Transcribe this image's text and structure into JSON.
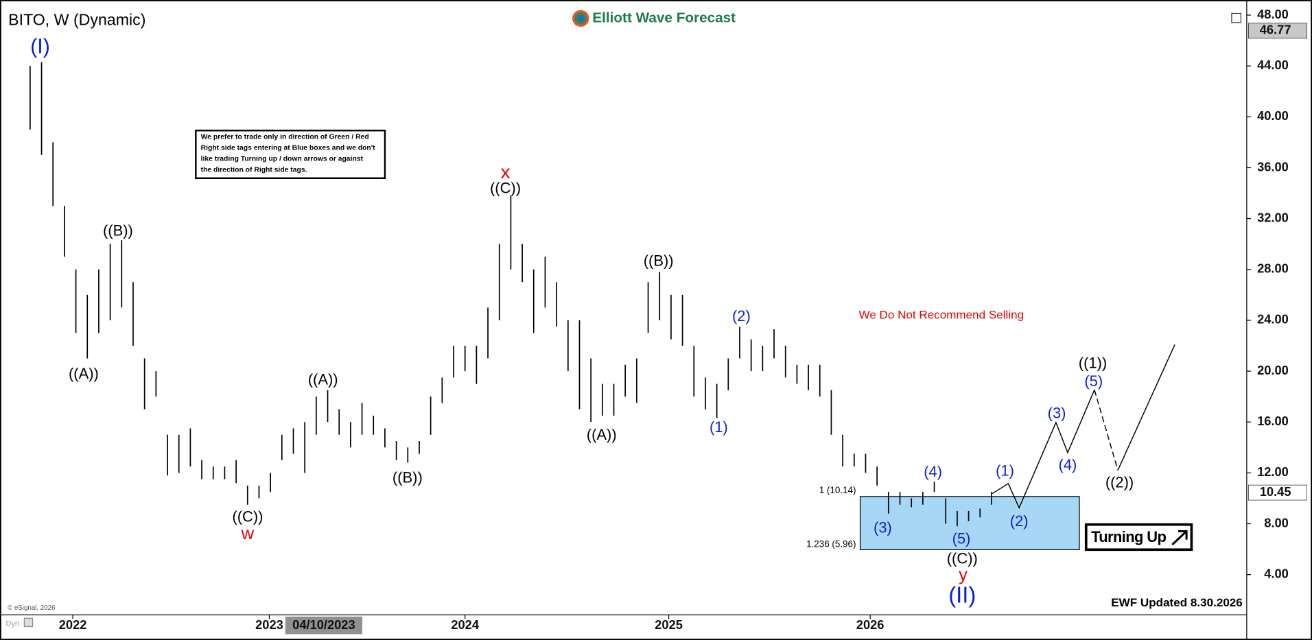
{
  "chart_data": {
    "type": "ohlc",
    "title": "BITO, W (Dynamic)",
    "brand": "Elliott Wave Forecast",
    "categories": [
      null,
      null,
      null,
      null,
      null,
      null,
      null,
      null,
      null,
      null,
      null,
      null,
      null,
      null,
      null,
      null,
      null,
      null,
      null,
      null,
      null,
      null,
      null,
      null,
      null,
      null,
      null,
      null,
      null,
      null,
      null,
      null,
      null,
      null,
      null,
      null,
      null,
      null,
      null,
      null,
      null,
      null,
      null,
      null,
      null,
      null,
      null,
      null,
      null,
      null,
      null,
      null,
      null,
      null,
      null,
      null,
      null,
      null,
      null,
      null,
      null,
      null,
      null,
      null,
      null,
      null,
      null,
      null,
      null,
      null,
      null,
      null,
      null,
      null,
      null,
      null,
      null,
      null,
      null,
      null,
      null,
      null,
      null,
      null,
      null
    ],
    "high": [
      44,
      44.3,
      38,
      33,
      28,
      26,
      28,
      30,
      30.3,
      27,
      21,
      20,
      15,
      15,
      15.5,
      13,
      12.5,
      12.5,
      13,
      11,
      11,
      12,
      15,
      15.5,
      16,
      18,
      18.5,
      17,
      16,
      17.5,
      16.5,
      15.5,
      14.5,
      14,
      14.5,
      18,
      19.5,
      22,
      22,
      22,
      25,
      30,
      33.8,
      30,
      28,
      29,
      27,
      24,
      24,
      21,
      19,
      19,
      20.5,
      21,
      27,
      27.8,
      26,
      26,
      22,
      19.5,
      19,
      21,
      23.5,
      22.5,
      22,
      23.3,
      22,
      20.5,
      20.5,
      20.5,
      18.5,
      15,
      13.5,
      13.5,
      12.5,
      10.5,
      10.5,
      10,
      10.5,
      11.3,
      10,
      9,
      9,
      9.2,
      10.5
    ],
    "low": [
      39,
      37,
      33,
      29,
      23,
      21,
      23,
      24,
      25,
      22,
      17,
      18,
      11.8,
      12,
      12.5,
      11.5,
      11.5,
      11.5,
      11.2,
      9.5,
      10,
      10.5,
      13,
      13.5,
      12,
      15,
      16,
      15,
      14,
      15,
      15,
      14,
      13,
      12.8,
      13.5,
      15,
      17.5,
      19.5,
      20,
      19,
      21,
      24,
      28,
      27,
      23,
      25,
      23.5,
      20,
      17,
      16,
      16.5,
      16.5,
      18,
      17.5,
      23,
      24,
      22.5,
      22,
      18,
      17,
      16.3,
      18.5,
      21,
      20,
      20,
      21,
      19.5,
      19,
      18.5,
      18,
      15,
      12.5,
      12.5,
      12,
      11,
      8.8,
      9.5,
      9.3,
      9.5,
      10.5,
      8,
      7.8,
      8.2,
      8.5,
      9.5
    ],
    "color": "#000000",
    "xlim": [
      -2.63,
      106.3
    ],
    "xticks": [
      {
        "value": 3.73,
        "label": "2022"
      },
      {
        "value": 20.9,
        "label": "2023"
      },
      {
        "value": 38,
        "label": "2024"
      },
      {
        "value": 55.8,
        "label": "2025"
      },
      {
        "value": 73.4,
        "label": "2026"
      }
    ],
    "crosshair_date": "04/10/2023",
    "ylim": [
      0.83,
      48.53
    ],
    "yticks": [
      {
        "value": 4,
        "label": "4.00"
      },
      {
        "value": 8,
        "label": "8.00"
      },
      {
        "value": 12,
        "label": "12.00"
      },
      {
        "value": 16,
        "label": "16.00"
      },
      {
        "value": 20,
        "label": "20.00"
      },
      {
        "value": 24,
        "label": "24.00"
      },
      {
        "value": 28,
        "label": "28.00"
      },
      {
        "value": 32,
        "label": "32.00"
      },
      {
        "value": 36,
        "label": "36.00"
      },
      {
        "value": 40,
        "label": "40.00"
      },
      {
        "value": 44,
        "label": "44.00"
      },
      {
        "value": 48,
        "label": "48.00"
      }
    ],
    "price_tags": [
      46.77,
      10.45
    ],
    "zone": {
      "top": 10.14,
      "bottom": 5.96,
      "top_label": "1 (10.14)",
      "bottom_label": "1.236 (5.96)",
      "color": "#a6d8f5"
    },
    "annotations": [
      "(I)",
      "((A))",
      "((B))",
      "((C))",
      "w",
      "((A))",
      "((B))",
      "x",
      "((C))",
      "((A))",
      "((B))",
      "(1)",
      "(2)",
      "(3)",
      "(4)",
      "(5)",
      "((C))",
      "y",
      "(II)",
      "(1)",
      "(2)",
      "(3)",
      "(4)",
      "(5)",
      "((1))",
      "((2))"
    ],
    "note": [
      "We prefer to trade only in direction of Green / Red",
      "Right side tags entering at Blue boxes and we don't",
      "like trading Turning up / down arrows or against",
      "the direction of Right side tags."
    ],
    "warning": "We Do Not Recommend Selling",
    "signal": "Turning Up",
    "updated": "EWF Updated 8.30.2026",
    "copyright": "© eSignal, 2026",
    "mode": "Dyn"
  }
}
